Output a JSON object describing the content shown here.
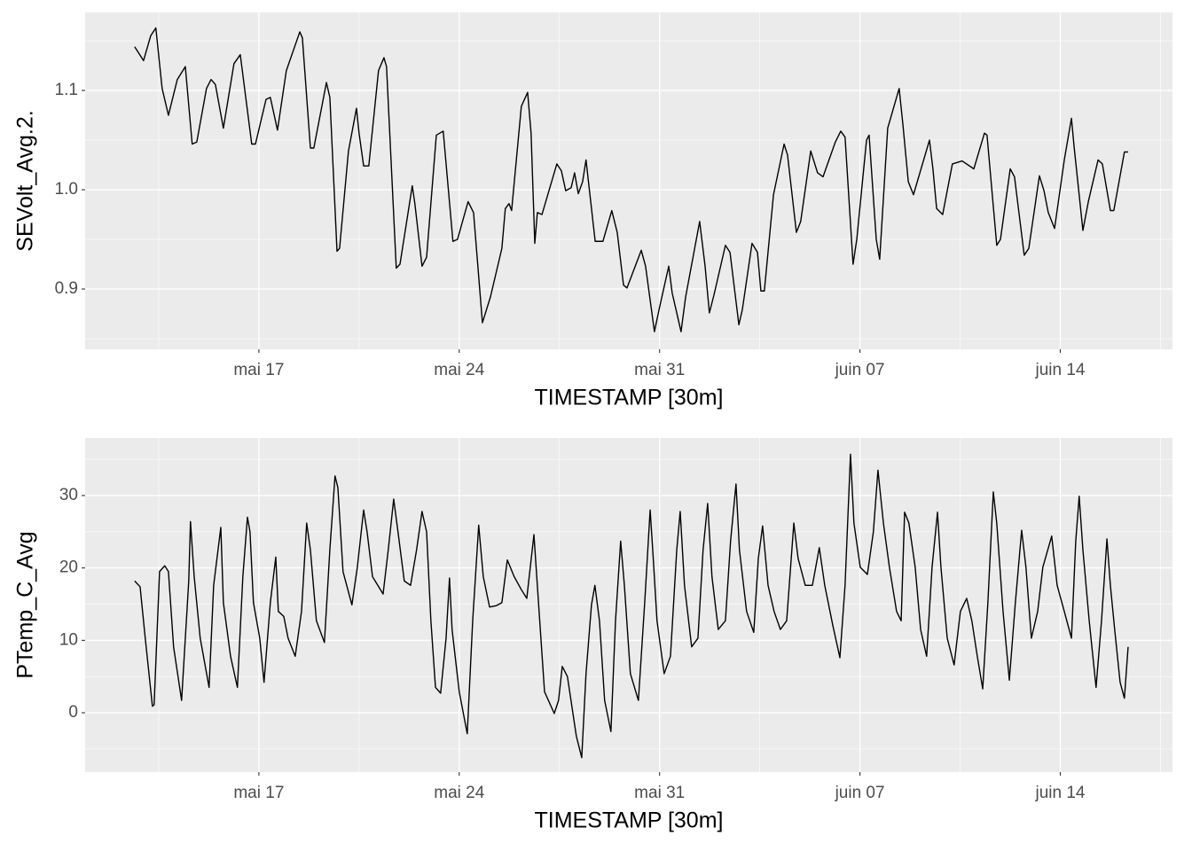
{
  "chart_data": [
    {
      "type": "line",
      "x_label": "TIMESTAMP [30m]",
      "y_label": "SEVolt_Avg.2.",
      "color": "#000000",
      "xlim": [
        10.93,
        48.92
      ],
      "ylim": [
        0.8393,
        1.1786
      ],
      "xticks": [
        {
          "value": 17,
          "label": "mai 17"
        },
        {
          "value": 24,
          "label": "mai 24"
        },
        {
          "value": 31,
          "label": "mai 31"
        },
        {
          "value": 38,
          "label": "juin 07"
        },
        {
          "value": 45,
          "label": "juin 14"
        }
      ],
      "yticks": [
        0.9,
        {
          "value": 1.0,
          "label": "1.0"
        },
        1.1
      ],
      "grid": true,
      "x": [
        12.66,
        12.97,
        13.22,
        13.4,
        13.62,
        13.84,
        14.15,
        14.43,
        14.67,
        14.83,
        15.17,
        15.33,
        15.48,
        15.76,
        16.13,
        16.35,
        16.75,
        16.88,
        17.25,
        17.4,
        17.65,
        17.96,
        18.43,
        18.52,
        18.8,
        18.92,
        19.36,
        19.48,
        19.73,
        19.82,
        20.13,
        20.41,
        20.5,
        20.66,
        20.84,
        21.18,
        21.37,
        21.46,
        21.8,
        21.93,
        22.36,
        22.45,
        22.7,
        22.86,
        23.2,
        23.44,
        23.78,
        23.94,
        24.31,
        24.5,
        24.81,
        25.09,
        25.49,
        25.61,
        25.74,
        25.83,
        26.17,
        26.39,
        26.51,
        26.64,
        26.73,
        26.89,
        27.41,
        27.57,
        27.72,
        27.91,
        28.03,
        28.16,
        28.31,
        28.43,
        28.75,
        29.02,
        29.33,
        29.52,
        29.74,
        29.86,
        30.36,
        30.51,
        30.82,
        30.98,
        31.32,
        31.44,
        31.75,
        31.91,
        32.4,
        32.59,
        32.74,
        32.9,
        33.3,
        33.46,
        33.77,
        33.89,
        34.23,
        34.42,
        34.54,
        34.66,
        34.98,
        35.35,
        35.47,
        35.78,
        35.93,
        36.28,
        36.52,
        36.71,
        37.14,
        37.33,
        37.48,
        37.76,
        37.89,
        38.23,
        38.32,
        38.57,
        38.69,
        38.97,
        39.37,
        39.5,
        39.69,
        39.87,
        40.43,
        40.55,
        40.68,
        40.89,
        41.23,
        41.57,
        41.98,
        42.35,
        42.44,
        42.78,
        42.91,
        43.25,
        43.4,
        43.74,
        43.9,
        44.27,
        44.43,
        44.58,
        44.8,
        45.14,
        45.39,
        45.48,
        45.79,
        45.98,
        46.32,
        46.47,
        46.75,
        46.87,
        47.24,
        47.37
      ],
      "values": [
        1.144,
        1.13,
        1.155,
        1.163,
        1.102,
        1.075,
        1.111,
        1.124,
        1.046,
        1.048,
        1.102,
        1.111,
        1.106,
        1.062,
        1.127,
        1.136,
        1.046,
        1.046,
        1.091,
        1.093,
        1.06,
        1.12,
        1.159,
        1.153,
        1.042,
        1.042,
        1.108,
        1.093,
        0.938,
        0.941,
        1.039,
        1.082,
        1.057,
        1.024,
        1.024,
        1.12,
        1.133,
        1.124,
        0.921,
        0.925,
        1.004,
        0.986,
        0.923,
        0.932,
        1.055,
        1.059,
        0.948,
        0.95,
        0.988,
        0.977,
        0.866,
        0.892,
        0.941,
        0.981,
        0.986,
        0.979,
        1.084,
        1.098,
        1.057,
        0.946,
        0.977,
        0.975,
        1.026,
        1.019,
        0.999,
        1.002,
        1.017,
        0.996,
        1.008,
        1.03,
        0.948,
        0.948,
        0.979,
        0.957,
        0.904,
        0.901,
        0.939,
        0.923,
        0.857,
        0.879,
        0.923,
        0.896,
        0.857,
        0.892,
        0.968,
        0.923,
        0.876,
        0.894,
        0.944,
        0.937,
        0.864,
        0.879,
        0.946,
        0.937,
        0.898,
        0.898,
        0.995,
        1.046,
        1.035,
        0.957,
        0.968,
        1.039,
        1.017,
        1.013,
        1.048,
        1.059,
        1.053,
        0.925,
        0.95,
        1.05,
        1.055,
        0.95,
        0.93,
        1.062,
        1.102,
        1.066,
        1.008,
        0.995,
        1.05,
        1.021,
        0.981,
        0.975,
        1.026,
        1.029,
        1.021,
        1.057,
        1.055,
        0.944,
        0.95,
        1.021,
        1.013,
        0.934,
        0.941,
        1.014,
        0.999,
        0.977,
        0.961,
        1.03,
        1.072,
        1.044,
        0.959,
        0.988,
        1.03,
        1.026,
        0.979,
        0.979,
        1.038,
        1.038
      ]
    },
    {
      "type": "line",
      "x_label": "TIMESTAMP [30m]",
      "y_label": "PTemp_C_Avg",
      "color": "#000000",
      "xlim": [
        10.93,
        48.92
      ],
      "ylim": [
        -8.2,
        37.96
      ],
      "xticks": [
        {
          "value": 17,
          "label": "mai 17"
        },
        {
          "value": 24,
          "label": "mai 24"
        },
        {
          "value": 31,
          "label": "mai 31"
        },
        {
          "value": 38,
          "label": "juin 07"
        },
        {
          "value": 45,
          "label": "juin 14"
        }
      ],
      "yticks": [
        0,
        10,
        20,
        30
      ],
      "grid": true,
      "x": [
        12.66,
        12.85,
        13.03,
        13.28,
        13.34,
        13.53,
        13.71,
        13.84,
        14.02,
        14.3,
        14.55,
        14.61,
        14.74,
        14.95,
        15.26,
        15.42,
        15.67,
        15.76,
        16.01,
        16.25,
        16.44,
        16.6,
        16.69,
        16.81,
        17.03,
        17.18,
        17.4,
        17.59,
        17.68,
        17.87,
        18.02,
        18.27,
        18.49,
        18.67,
        18.8,
        19.01,
        19.29,
        19.48,
        19.66,
        19.76,
        19.94,
        20.25,
        20.44,
        20.66,
        20.78,
        20.97,
        21.34,
        21.52,
        21.71,
        21.86,
        22.08,
        22.3,
        22.51,
        22.7,
        22.86,
        23.01,
        23.17,
        23.35,
        23.54,
        23.66,
        23.75,
        24.0,
        24.28,
        24.47,
        24.68,
        24.84,
        25.06,
        25.3,
        25.49,
        25.68,
        25.92,
        26.17,
        26.36,
        26.61,
        26.79,
        26.98,
        27.32,
        27.47,
        27.6,
        27.78,
        28.09,
        28.28,
        28.43,
        28.62,
        28.74,
        28.9,
        29.08,
        29.3,
        29.46,
        29.64,
        29.77,
        29.98,
        30.26,
        30.48,
        30.67,
        30.76,
        30.91,
        31.16,
        31.38,
        31.6,
        31.72,
        31.87,
        32.12,
        32.34,
        32.52,
        32.68,
        32.83,
        33.05,
        33.3,
        33.48,
        33.67,
        33.79,
        34.04,
        34.29,
        34.45,
        34.6,
        34.79,
        35.0,
        35.22,
        35.44,
        35.69,
        35.84,
        36.09,
        36.34,
        36.58,
        36.77,
        37.05,
        37.3,
        37.48,
        37.67,
        37.79,
        38.01,
        38.26,
        38.47,
        38.63,
        38.82,
        39.03,
        39.28,
        39.44,
        39.56,
        39.71,
        39.93,
        40.12,
        40.33,
        40.52,
        40.71,
        40.83,
        41.05,
        41.29,
        41.51,
        41.73,
        41.91,
        42.1,
        42.29,
        42.47,
        42.66,
        42.78,
        43.0,
        43.22,
        43.43,
        43.65,
        43.8,
        43.99,
        44.21,
        44.39,
        44.7,
        44.89,
        45.14,
        45.39,
        45.54,
        45.66,
        45.79,
        46.01,
        46.25,
        46.44,
        46.63,
        46.75,
        46.9,
        47.09,
        47.24,
        47.37
      ],
      "values": [
        18.2,
        17.4,
        10.3,
        0.9,
        1.1,
        19.5,
        20.3,
        19.5,
        9.1,
        1.7,
        18.2,
        26.4,
        18.8,
        10.3,
        3.5,
        17.6,
        25.6,
        15.2,
        7.8,
        3.5,
        18.8,
        27.0,
        25.0,
        15.2,
        10.3,
        4.2,
        15.2,
        21.5,
        14.0,
        13.3,
        10.3,
        7.8,
        14.0,
        26.2,
        22.5,
        12.7,
        9.7,
        22.5,
        32.7,
        31.1,
        19.5,
        14.9,
        20.1,
        28.0,
        25.0,
        18.8,
        16.4,
        22.5,
        29.5,
        25.0,
        18.2,
        17.6,
        22.5,
        27.8,
        25.0,
        12.7,
        3.5,
        2.7,
        10.3,
        18.6,
        11.5,
        2.9,
        -2.9,
        12.7,
        25.9,
        18.8,
        14.6,
        14.8,
        15.2,
        21.1,
        18.8,
        17.0,
        15.8,
        24.6,
        14.0,
        2.9,
        -0.1,
        1.7,
        6.4,
        5.0,
        -3.2,
        -6.2,
        5.4,
        14.9,
        17.6,
        12.7,
        1.7,
        -2.6,
        12.7,
        23.7,
        17.6,
        5.4,
        1.7,
        15.2,
        28.0,
        22.5,
        12.7,
        5.4,
        7.8,
        22.5,
        27.8,
        17.6,
        9.1,
        10.3,
        22.5,
        28.9,
        18.8,
        11.5,
        12.7,
        23.7,
        31.6,
        22.5,
        14.0,
        11.1,
        21.3,
        25.8,
        17.6,
        14.0,
        11.5,
        12.7,
        26.2,
        21.3,
        17.6,
        17.6,
        22.8,
        17.6,
        12.1,
        7.6,
        17.6,
        35.7,
        26.2,
        20.1,
        19.1,
        25.0,
        33.5,
        26.2,
        20.1,
        14.0,
        12.7,
        27.7,
        26.2,
        20.1,
        11.5,
        7.8,
        20.1,
        27.7,
        20.1,
        10.3,
        6.6,
        14.0,
        15.8,
        12.7,
        7.8,
        3.3,
        15.2,
        30.5,
        26.2,
        14.0,
        4.5,
        15.2,
        25.2,
        20.1,
        10.3,
        14.0,
        20.1,
        24.4,
        17.6,
        14.0,
        10.3,
        23.7,
        29.9,
        22.5,
        12.7,
        3.5,
        12.7,
        24.0,
        17.6,
        11.5,
        4.2,
        2.0,
        9.1
      ]
    }
  ]
}
